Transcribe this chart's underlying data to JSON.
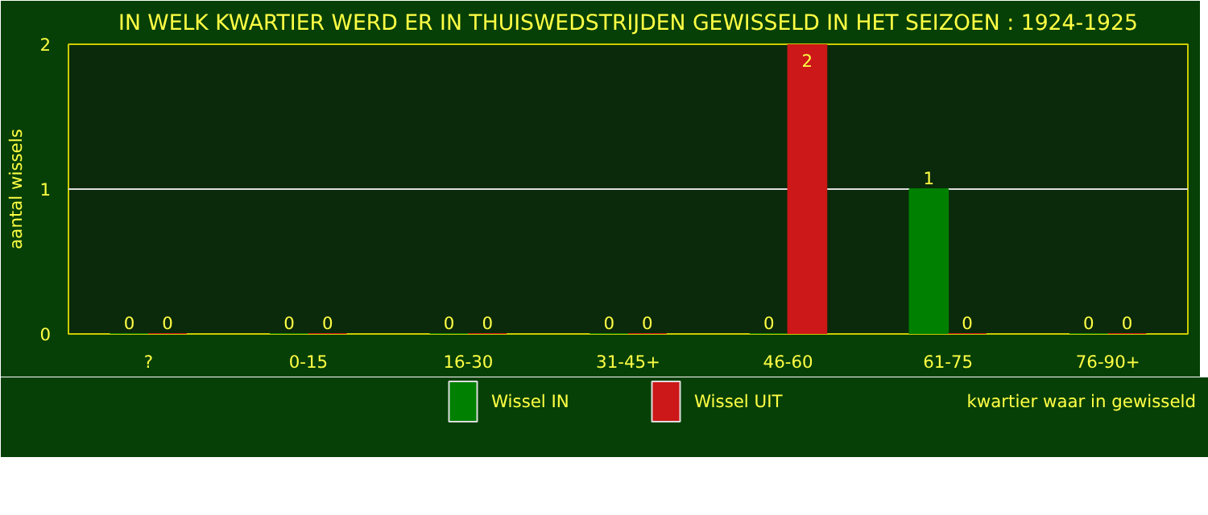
{
  "chart_data": {
    "type": "bar",
    "title": "IN WELK KWARTIER WERD ER IN THUISWEDSTRIJDEN GEWISSELD IN HET SEIZOEN : 1924-1925",
    "xlabel": "kwartier waar in gewisseld",
    "ylabel": "aantal wissels",
    "categories": [
      "?",
      "0-15",
      "16-30",
      "31-45+",
      "46-60",
      "61-75",
      "76-90+"
    ],
    "series": [
      {
        "name": "Wissel IN",
        "color": "#008000",
        "values": [
          0,
          0,
          0,
          0,
          0,
          1,
          0
        ]
      },
      {
        "name": "Wissel UIT",
        "color": "#cc1818",
        "values": [
          0,
          0,
          0,
          0,
          2,
          0,
          0
        ]
      }
    ],
    "ylim": [
      0,
      2
    ],
    "yticks": [
      0,
      1,
      2
    ],
    "grid": "y",
    "data_labels": true,
    "legend": "bottom"
  }
}
